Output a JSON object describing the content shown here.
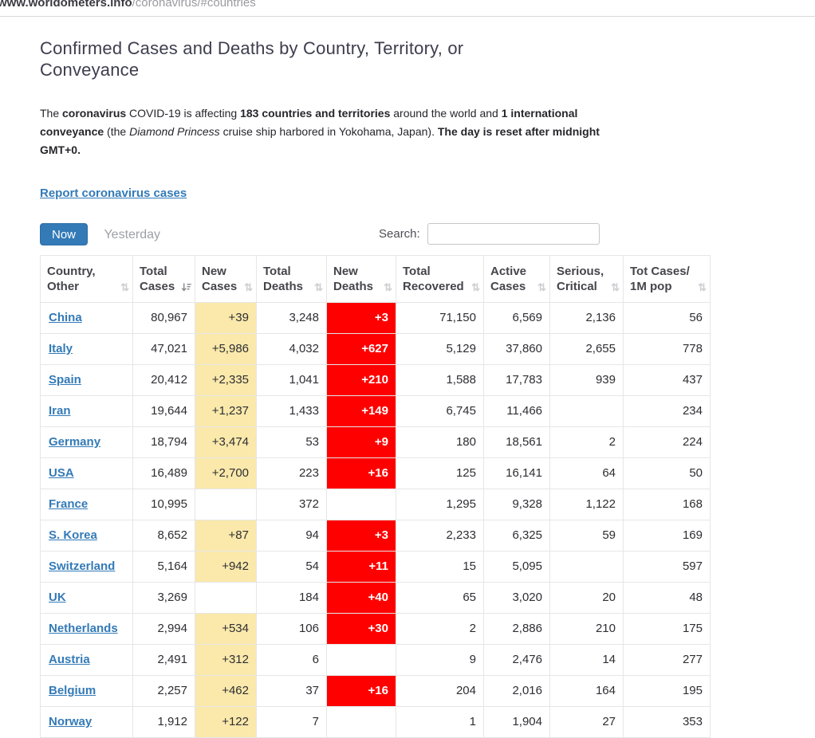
{
  "browser": {
    "url_host": "www.worldometers.info",
    "url_path": "/coronavirus/#countries"
  },
  "page": {
    "title": "Confirmed Cases and Deaths by Country, Territory, or Conveyance",
    "intro_segments": [
      {
        "t": "The ",
        "b": 0,
        "i": 0
      },
      {
        "t": "coronavirus",
        "b": 1,
        "i": 0
      },
      {
        "t": " COVID-19 is affecting ",
        "b": 0,
        "i": 0
      },
      {
        "t": "183 countries and territories",
        "b": 1,
        "i": 0
      },
      {
        "t": " around the world and ",
        "b": 0,
        "i": 0
      },
      {
        "t": "1 international conveyance",
        "b": 1,
        "i": 0
      },
      {
        "t": " (the ",
        "b": 0,
        "i": 0
      },
      {
        "t": "Diamond Princess",
        "b": 0,
        "i": 1
      },
      {
        "t": " cruise ship harbored in Yokohama, Japan). ",
        "b": 0,
        "i": 0
      },
      {
        "t": "The day is reset after midnight GMT+0",
        "b": 1,
        "i": 0
      },
      {
        "t": ".",
        "b": 1,
        "i": 0
      }
    ],
    "report_link": "Report coronavirus cases"
  },
  "controls": {
    "now_label": "Now",
    "yesterday_label": "Yesterday",
    "search_label": "Search:",
    "search_value": ""
  },
  "icons": {
    "sort_both": "⇅"
  },
  "colors": {
    "accent_blue": "#337ab7",
    "highlight_yellow": "#FAE9AB",
    "highlight_red": "#FF0000"
  },
  "table": {
    "columns": [
      {
        "label": "Country, Other",
        "sort": "none"
      },
      {
        "label": "Total Cases",
        "sort": "desc"
      },
      {
        "label": "New Cases",
        "sort": "none"
      },
      {
        "label": "Total Deaths",
        "sort": "none"
      },
      {
        "label": "New Deaths",
        "sort": "none"
      },
      {
        "label": "Total Recovered",
        "sort": "none"
      },
      {
        "label": "Active Cases",
        "sort": "none"
      },
      {
        "label": "Serious, Critical",
        "sort": "none"
      },
      {
        "label": "Tot Cases/ 1M pop",
        "sort": "none"
      }
    ],
    "rows": [
      {
        "country": "China",
        "total_cases": "80,967",
        "new_cases": "+39",
        "total_deaths": "3,248",
        "new_deaths": "+3",
        "total_recovered": "71,150",
        "active_cases": "6,569",
        "serious_critical": "2,136",
        "tot_cases_1m": "56"
      },
      {
        "country": "Italy",
        "total_cases": "47,021",
        "new_cases": "+5,986",
        "total_deaths": "4,032",
        "new_deaths": "+627",
        "total_recovered": "5,129",
        "active_cases": "37,860",
        "serious_critical": "2,655",
        "tot_cases_1m": "778"
      },
      {
        "country": "Spain",
        "total_cases": "20,412",
        "new_cases": "+2,335",
        "total_deaths": "1,041",
        "new_deaths": "+210",
        "total_recovered": "1,588",
        "active_cases": "17,783",
        "serious_critical": "939",
        "tot_cases_1m": "437"
      },
      {
        "country": "Iran",
        "total_cases": "19,644",
        "new_cases": "+1,237",
        "total_deaths": "1,433",
        "new_deaths": "+149",
        "total_recovered": "6,745",
        "active_cases": "11,466",
        "serious_critical": "",
        "tot_cases_1m": "234"
      },
      {
        "country": "Germany",
        "total_cases": "18,794",
        "new_cases": "+3,474",
        "total_deaths": "53",
        "new_deaths": "+9",
        "total_recovered": "180",
        "active_cases": "18,561",
        "serious_critical": "2",
        "tot_cases_1m": "224"
      },
      {
        "country": "USA",
        "total_cases": "16,489",
        "new_cases": "+2,700",
        "total_deaths": "223",
        "new_deaths": "+16",
        "total_recovered": "125",
        "active_cases": "16,141",
        "serious_critical": "64",
        "tot_cases_1m": "50"
      },
      {
        "country": "France",
        "total_cases": "10,995",
        "new_cases": "",
        "total_deaths": "372",
        "new_deaths": "",
        "total_recovered": "1,295",
        "active_cases": "9,328",
        "serious_critical": "1,122",
        "tot_cases_1m": "168"
      },
      {
        "country": "S. Korea",
        "total_cases": "8,652",
        "new_cases": "+87",
        "total_deaths": "94",
        "new_deaths": "+3",
        "total_recovered": "2,233",
        "active_cases": "6,325",
        "serious_critical": "59",
        "tot_cases_1m": "169"
      },
      {
        "country": "Switzerland",
        "total_cases": "5,164",
        "new_cases": "+942",
        "total_deaths": "54",
        "new_deaths": "+11",
        "total_recovered": "15",
        "active_cases": "5,095",
        "serious_critical": "",
        "tot_cases_1m": "597"
      },
      {
        "country": "UK",
        "total_cases": "3,269",
        "new_cases": "",
        "total_deaths": "184",
        "new_deaths": "+40",
        "total_recovered": "65",
        "active_cases": "3,020",
        "serious_critical": "20",
        "tot_cases_1m": "48"
      },
      {
        "country": "Netherlands",
        "total_cases": "2,994",
        "new_cases": "+534",
        "total_deaths": "106",
        "new_deaths": "+30",
        "total_recovered": "2",
        "active_cases": "2,886",
        "serious_critical": "210",
        "tot_cases_1m": "175"
      },
      {
        "country": "Austria",
        "total_cases": "2,491",
        "new_cases": "+312",
        "total_deaths": "6",
        "new_deaths": "",
        "total_recovered": "9",
        "active_cases": "2,476",
        "serious_critical": "14",
        "tot_cases_1m": "277"
      },
      {
        "country": "Belgium",
        "total_cases": "2,257",
        "new_cases": "+462",
        "total_deaths": "37",
        "new_deaths": "+16",
        "total_recovered": "204",
        "active_cases": "2,016",
        "serious_critical": "164",
        "tot_cases_1m": "195"
      },
      {
        "country": "Norway",
        "total_cases": "1,912",
        "new_cases": "+122",
        "total_deaths": "7",
        "new_deaths": "",
        "total_recovered": "1",
        "active_cases": "1,904",
        "serious_critical": "27",
        "tot_cases_1m": "353"
      }
    ]
  }
}
